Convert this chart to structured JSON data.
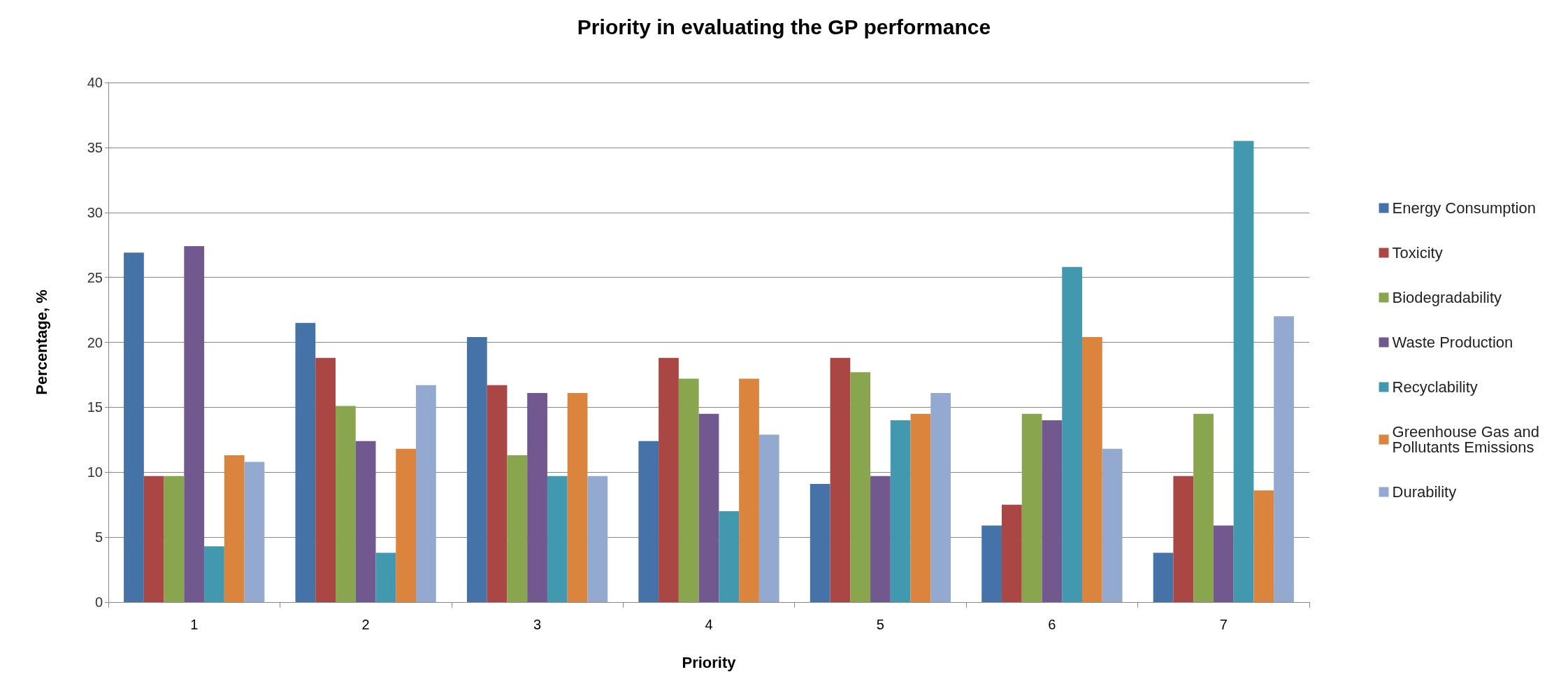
{
  "chart_data": {
    "type": "bar",
    "title": "Priority in evaluating the GP performance",
    "xlabel": "Priority",
    "ylabel": "Percentage, %",
    "categories": [
      "1",
      "2",
      "3",
      "4",
      "5",
      "6",
      "7"
    ],
    "series": [
      {
        "name": "Energy Consumption",
        "color": "#4572a7",
        "values": [
          26.9,
          21.5,
          20.4,
          12.4,
          9.1,
          5.9,
          3.8
        ]
      },
      {
        "name": "Toxicity",
        "color": "#aa4643",
        "values": [
          9.7,
          18.8,
          16.7,
          18.8,
          18.8,
          7.5,
          9.7
        ]
      },
      {
        "name": "Biodegradability",
        "color": "#89a54e",
        "values": [
          9.7,
          15.1,
          11.3,
          17.2,
          17.7,
          14.5,
          14.5
        ]
      },
      {
        "name": "Waste Production",
        "color": "#71588f",
        "values": [
          27.4,
          12.4,
          16.1,
          14.5,
          9.7,
          14.0,
          5.9
        ]
      },
      {
        "name": "Recyclability",
        "color": "#4198af",
        "values": [
          4.3,
          3.8,
          9.7,
          7.0,
          14.0,
          25.8,
          35.5
        ]
      },
      {
        "name": "Greenhouse Gas and Pollutants Emissions",
        "color": "#db843d",
        "values": [
          11.3,
          11.8,
          16.1,
          17.2,
          14.5,
          20.4,
          8.6
        ]
      },
      {
        "name": "Durability",
        "color": "#93a9cf",
        "values": [
          10.8,
          16.7,
          9.7,
          12.9,
          16.1,
          11.8,
          22.0
        ]
      }
    ],
    "ylim": [
      0,
      40
    ],
    "yticks": [
      0,
      5,
      10,
      15,
      20,
      25,
      30,
      35,
      40
    ],
    "grid": "y",
    "legend": "right"
  }
}
